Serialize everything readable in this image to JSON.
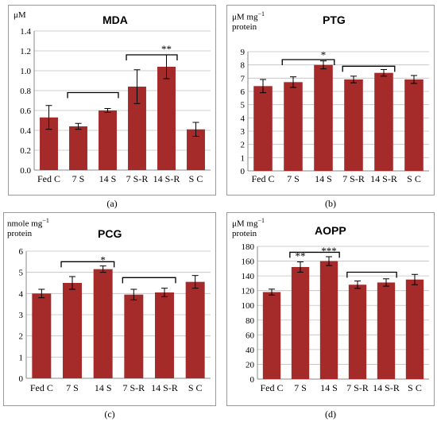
{
  "chart_data": [
    {
      "type": "bar",
      "panel": "a",
      "title": "MDA",
      "ylabel": "μM",
      "ylabel2": "",
      "caption": "(a)",
      "categories": [
        "Fed C",
        "7 S",
        "14 S",
        "7 S-R",
        "14 S-R",
        "S C"
      ],
      "values": [
        0.53,
        0.44,
        0.6,
        0.84,
        1.04,
        0.41
      ],
      "errors": [
        0.12,
        0.03,
        0.02,
        0.17,
        0.12,
        0.07
      ],
      "ylim": [
        0,
        1.4
      ],
      "yticks": [
        0,
        0.2,
        0.4,
        0.6,
        0.8,
        1.0,
        1.2,
        1.4
      ],
      "ytick_labels": [
        "0.0",
        "0.2",
        "0.4",
        "0.6",
        "0.8",
        "1.0",
        "1.2",
        "1.4"
      ],
      "significance": [
        {
          "index": 4,
          "label": "**"
        }
      ],
      "brackets": [
        [
          1,
          2
        ],
        [
          3,
          4
        ]
      ],
      "bracket_levels": [
        0.78,
        1.16
      ],
      "bar_color": "#a52a2a"
    },
    {
      "type": "bar",
      "panel": "b",
      "title": "PTG",
      "ylabel": "μM mg",
      "ylabel_sup": "−1",
      "ylabel2": "protein",
      "caption": "(b)",
      "categories": [
        "Fed C",
        "7 S",
        "14 S",
        "7 S-R",
        "14 S-R",
        "S C"
      ],
      "values": [
        6.4,
        6.7,
        8.0,
        6.9,
        7.4,
        6.9
      ],
      "errors": [
        0.5,
        0.4,
        0.3,
        0.25,
        0.25,
        0.3
      ],
      "ylim": [
        0,
        9
      ],
      "yticks": [
        0,
        1,
        2,
        3,
        4,
        5,
        6,
        7,
        8,
        9
      ],
      "ytick_labels": [
        "0",
        "1",
        "2",
        "3",
        "4",
        "5",
        "6",
        "7",
        "8",
        "9"
      ],
      "significance": [
        {
          "index": 2,
          "label": "*"
        }
      ],
      "brackets": [
        [
          1,
          2
        ],
        [
          3,
          4
        ]
      ],
      "bracket_levels": [
        8.4,
        7.9
      ],
      "bar_color": "#a52a2a"
    },
    {
      "type": "bar",
      "panel": "c",
      "title": "PCG",
      "ylabel": "nmole mg",
      "ylabel_sup": "−1",
      "ylabel2": "protein",
      "caption": "(c)",
      "categories": [
        "Fed C",
        "7 S",
        "14 S",
        "7 S-R",
        "14 S-R",
        "S C"
      ],
      "values": [
        4.0,
        4.5,
        5.15,
        3.95,
        4.05,
        4.55
      ],
      "errors": [
        0.2,
        0.3,
        0.15,
        0.25,
        0.2,
        0.3
      ],
      "ylim": [
        0,
        6
      ],
      "yticks": [
        0,
        1,
        2,
        3,
        4,
        5,
        6
      ],
      "ytick_labels": [
        "0",
        "1",
        "2",
        "3",
        "4",
        "5",
        "6"
      ],
      "significance": [
        {
          "index": 2,
          "label": "*"
        }
      ],
      "brackets": [
        [
          1,
          2
        ],
        [
          3,
          4
        ]
      ],
      "bracket_levels": [
        5.5,
        4.75
      ],
      "bar_color": "#a52a2a"
    },
    {
      "type": "bar",
      "panel": "d",
      "title": "AOPP",
      "ylabel": "μM mg",
      "ylabel_sup": "−1",
      "ylabel2": "protein",
      "caption": "(d)",
      "categories": [
        "Fed C",
        "7 S",
        "14 S",
        "7 S-R",
        "14 S-R",
        "S C"
      ],
      "values": [
        118,
        152,
        160,
        128,
        131,
        135
      ],
      "errors": [
        4,
        7,
        6,
        5,
        5,
        7
      ],
      "ylim": [
        0,
        180
      ],
      "yticks": [
        0,
        20,
        40,
        60,
        80,
        100,
        120,
        140,
        160,
        180
      ],
      "ytick_labels": [
        "0",
        "20",
        "40",
        "60",
        "80",
        "100",
        "120",
        "140",
        "160",
        "180"
      ],
      "significance": [
        {
          "index": 1,
          "label": "**"
        },
        {
          "index": 2,
          "label": "***"
        }
      ],
      "brackets": [
        [
          1,
          2
        ],
        [
          3,
          4
        ]
      ],
      "bracket_levels": [
        172,
        145
      ],
      "bar_color": "#a52a2a"
    }
  ]
}
